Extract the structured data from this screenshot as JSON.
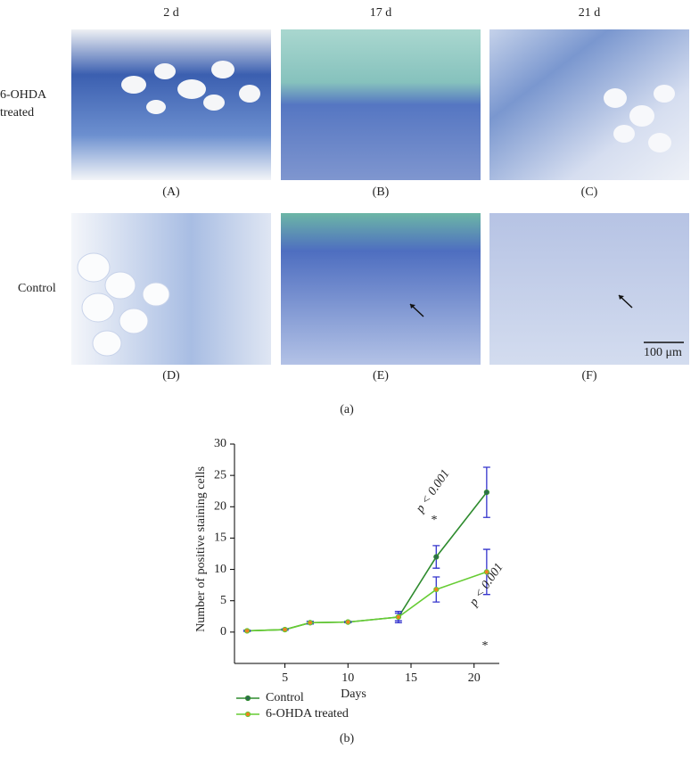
{
  "figure": {
    "column_labels": [
      "2 d",
      "17 d",
      "21 d"
    ],
    "row_labels": [
      "6-OHDA treated",
      "Control"
    ],
    "panel_labels": [
      "(A)",
      "(B)",
      "(C)",
      "(D)",
      "(E)",
      "(F)"
    ],
    "scale_bar": "100 μm",
    "caption_a": "(a)",
    "caption_b": "(b)"
  },
  "chart_data": {
    "type": "line",
    "x_label": "Days",
    "y_label": "Number of positive staining cells",
    "x": [
      2,
      5,
      7,
      10,
      14,
      17,
      21
    ],
    "series": [
      {
        "name": "Control",
        "color": "#2e8b2e",
        "marker_color": "#2e6b4e",
        "values": [
          0.2,
          0.4,
          1.5,
          1.6,
          2.4,
          12,
          22.3
        ],
        "errors": [
          0.1,
          0.1,
          0.2,
          0.1,
          0.9,
          1.8,
          4
        ]
      },
      {
        "name": "6-OHDA treated",
        "color": "#66cc33",
        "marker_color": "#f08020",
        "values": [
          0.2,
          0.4,
          1.5,
          1.6,
          2.4,
          6.8,
          9.6
        ],
        "errors": [
          0.1,
          0.1,
          0.2,
          0.1,
          0.6,
          2,
          3.6
        ]
      }
    ],
    "error_color": "#3333cc",
    "annotations": [
      "p < 0.001",
      "*",
      "p < 0.001",
      "*"
    ],
    "xlim": [
      1,
      22
    ],
    "xticks": [
      5,
      10,
      15,
      20
    ],
    "ylim": [
      -5,
      30
    ],
    "yticks": [
      0,
      5,
      10,
      15,
      20,
      25,
      30
    ]
  }
}
